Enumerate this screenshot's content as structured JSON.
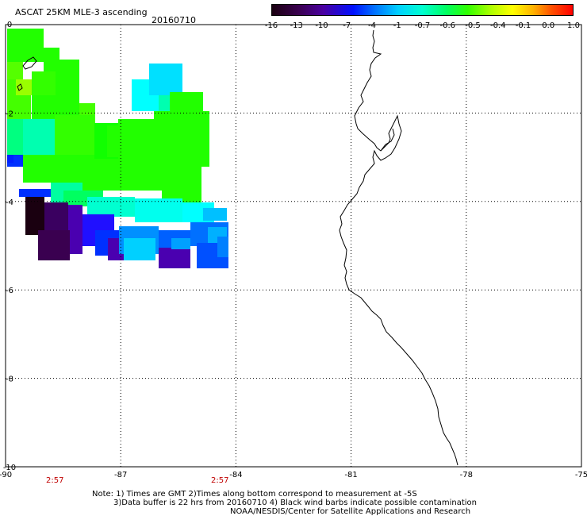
{
  "header": {
    "title": "ASCAT 25KM MLE-3 ascending",
    "date": "20160710"
  },
  "scale": {
    "ticks": [
      "-16",
      "-13",
      "-10",
      "-7",
      "-4",
      "-1",
      "-0.7",
      "-0.6",
      "-0.5",
      "-0.4",
      "-0.1",
      "0.0",
      "1.0"
    ]
  },
  "axes": {
    "x_labels": [
      "-90",
      "-87",
      "-84",
      "-81",
      "-78",
      "-75"
    ],
    "y_labels": [
      "0",
      "-2",
      "-4",
      "-6",
      "-8",
      "-10"
    ]
  },
  "times": [
    "2:57",
    "2:57"
  ],
  "notes": {
    "line1": "Note: 1) Times are GMT 2)Times along bottom correspond to measurement at -5S",
    "line2": "3)Data buffer is 22 hrs from 20160710 4) Black wind barbs indicate possible contamination",
    "line3": "NOAA/NESDIS/Center for Satellite Applications and Research"
  },
  "colors": {
    "frame": "#000000",
    "grid": "#000000",
    "coast": "#000000",
    "time_label": "#c00000"
  }
}
